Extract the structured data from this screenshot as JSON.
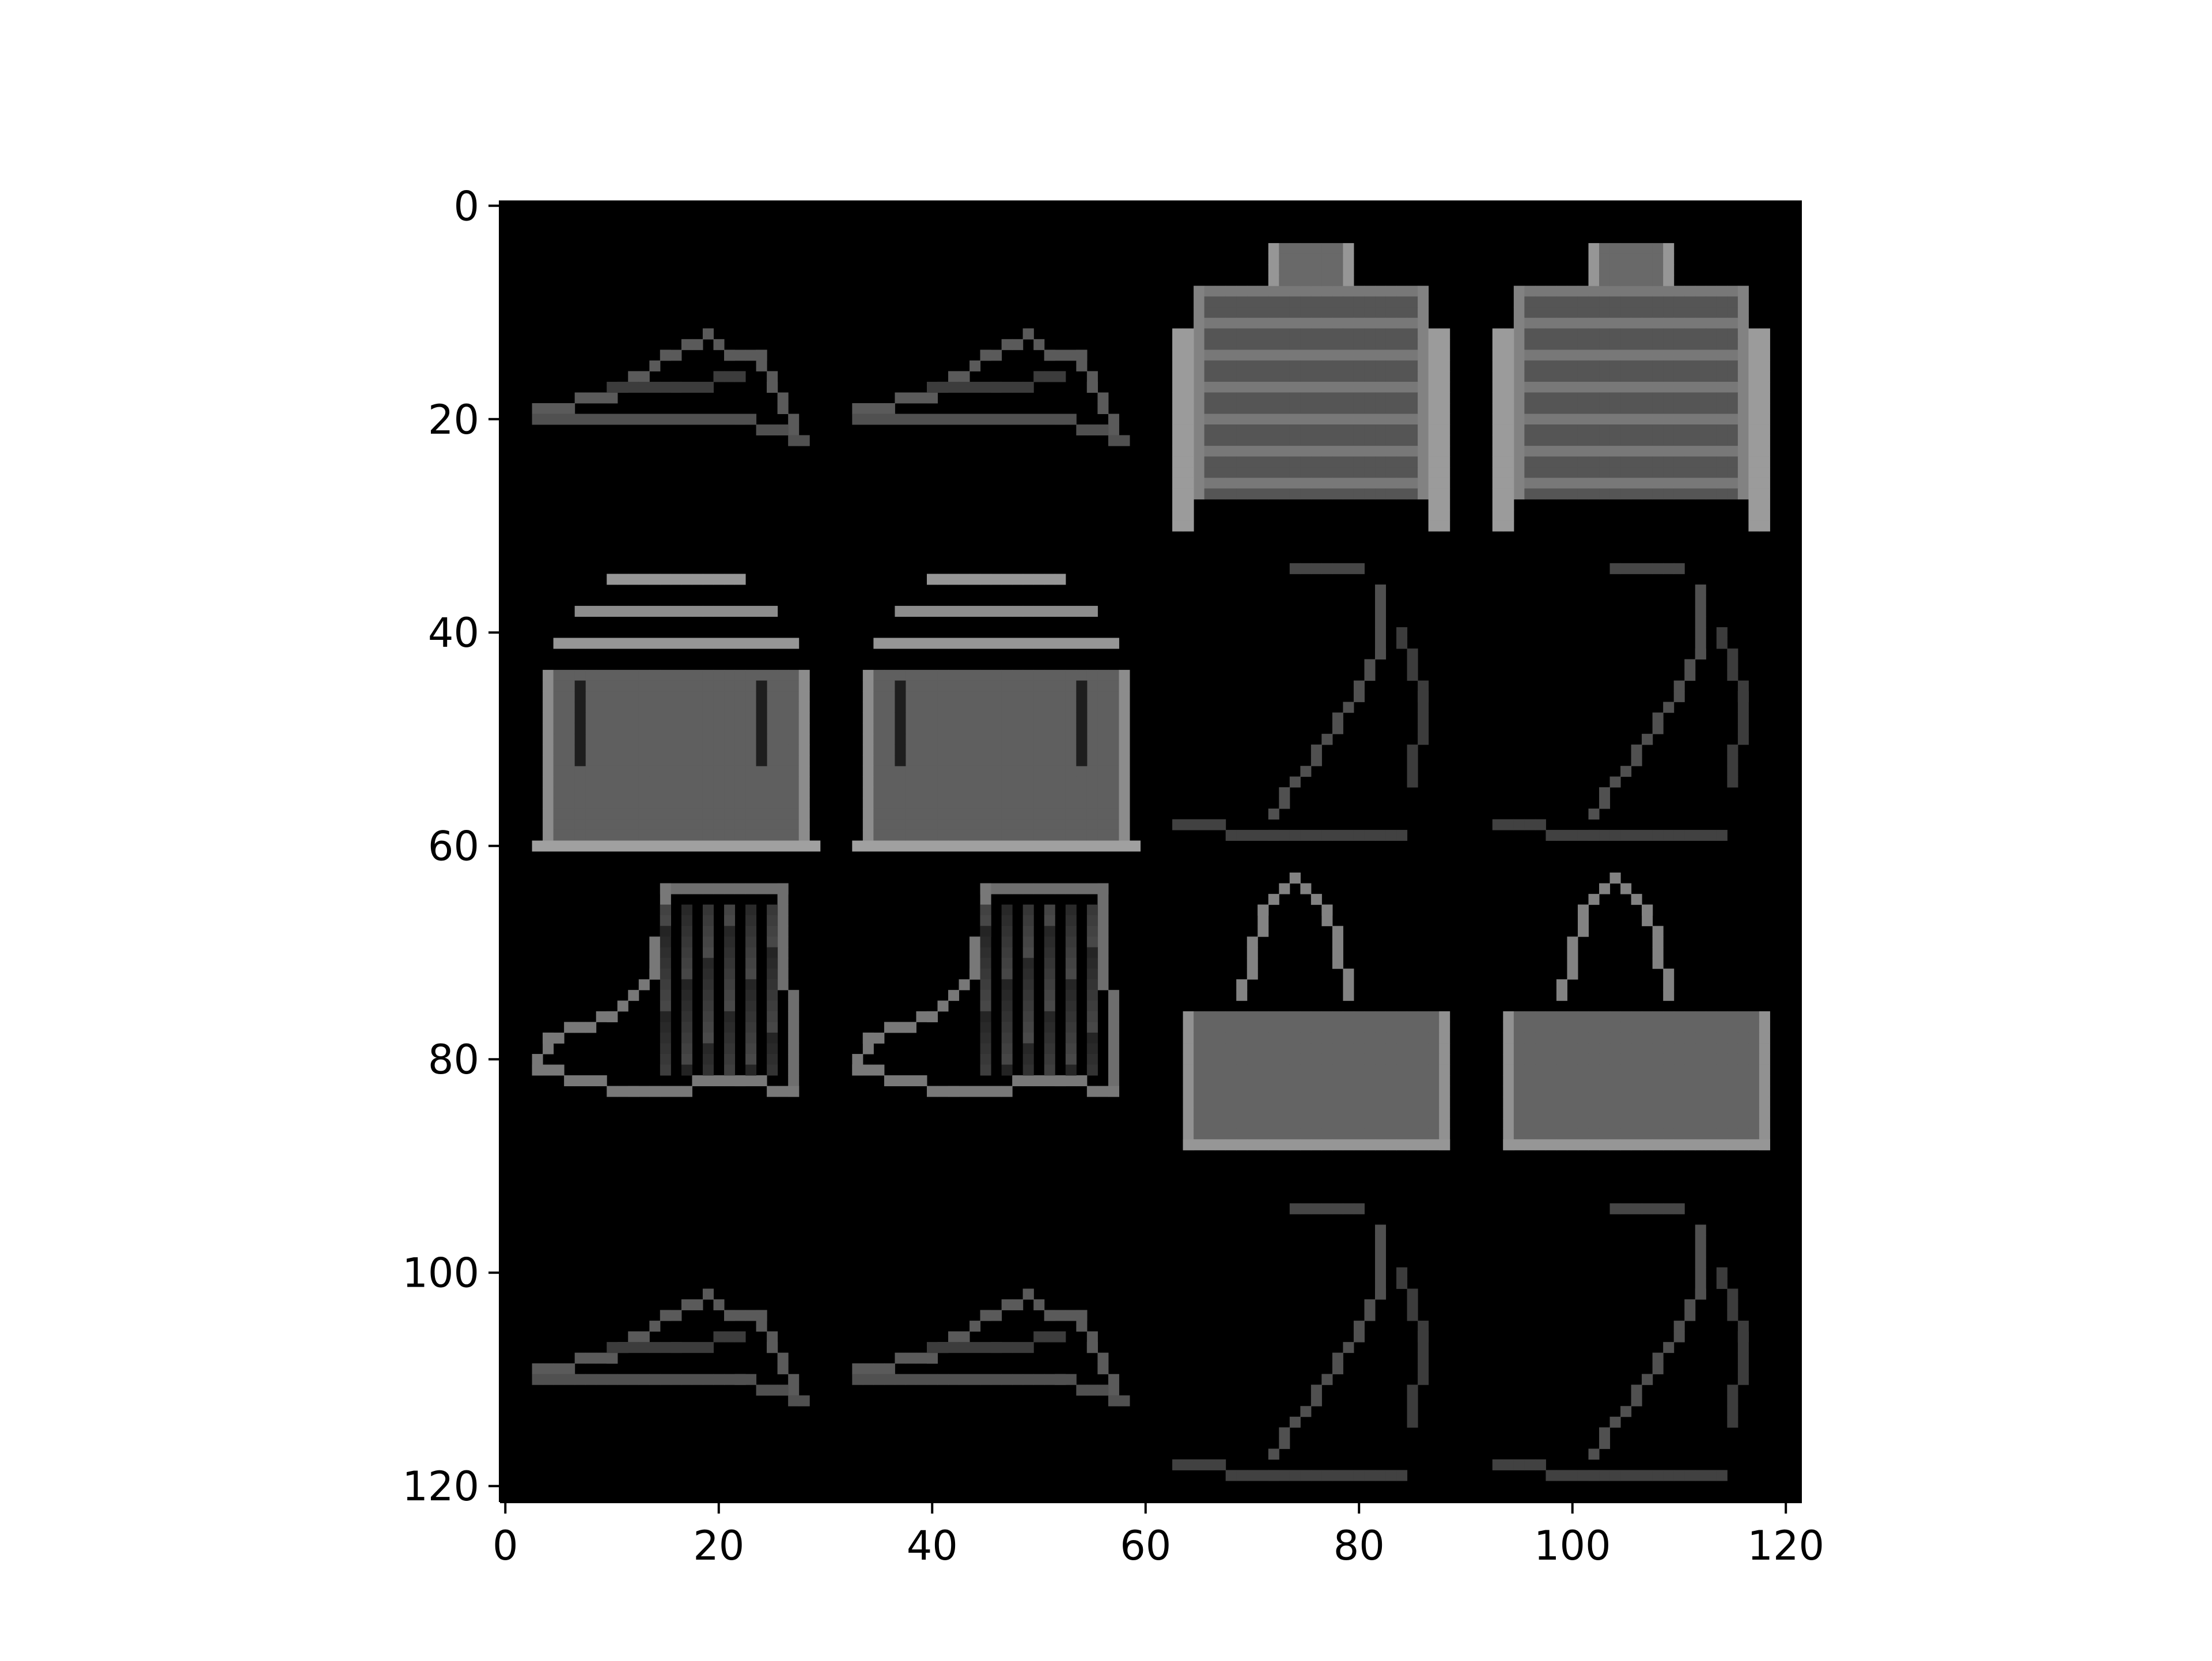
{
  "chart_data": {
    "type": "heatmap",
    "title": "",
    "xlabel": "",
    "ylabel": "",
    "xlim": [
      -0.5,
      121.5
    ],
    "ylim": [
      121.5,
      -0.5
    ],
    "x_ticks": [
      0,
      20,
      40,
      60,
      80,
      100,
      120
    ],
    "y_ticks": [
      0,
      20,
      40,
      60,
      80,
      100,
      120
    ],
    "x_tick_labels": [
      "0",
      "20",
      "40",
      "60",
      "80",
      "100",
      "120"
    ],
    "y_tick_labels": [
      "0",
      "20",
      "40",
      "60",
      "80",
      "100",
      "120"
    ],
    "grid": false,
    "colormap": "gray",
    "background_color": "#000000",
    "image_grid": {
      "rows": 4,
      "cols": 4,
      "tile_size": 28,
      "padding": 2,
      "tiles": [
        [
          "sneaker",
          "sneaker",
          "pullover",
          "pullover"
        ],
        [
          "top",
          "top",
          "sandal",
          "sandal"
        ],
        [
          "ankle-boot",
          "ankle-boot",
          "bag",
          "bag"
        ],
        [
          "sneaker",
          "sneaker",
          "sandal",
          "sandal"
        ]
      ]
    }
  }
}
